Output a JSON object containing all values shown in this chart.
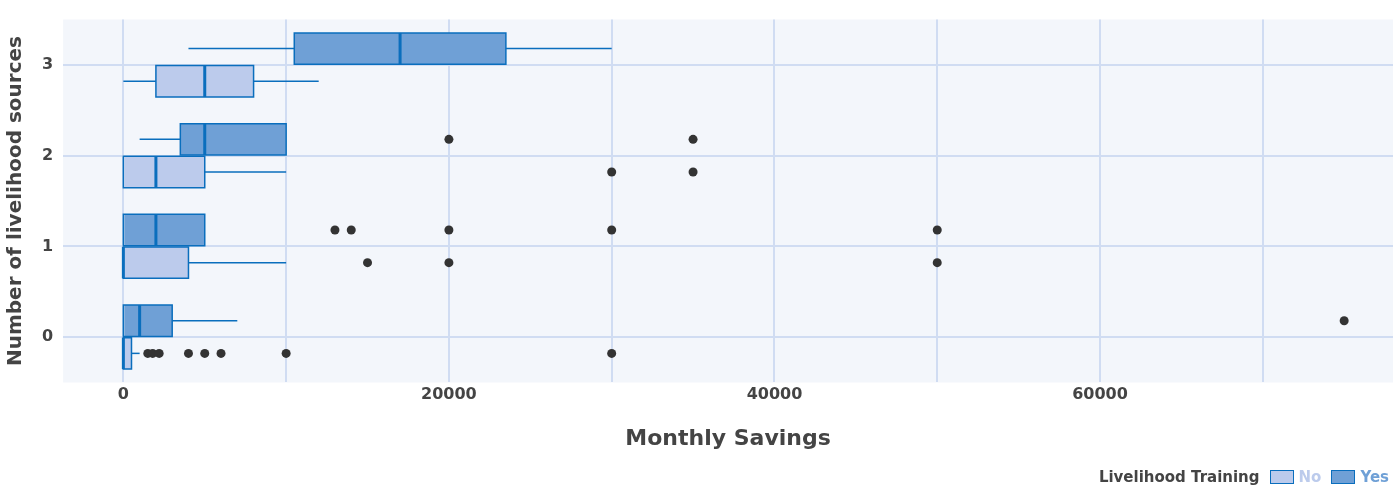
{
  "chart_data": {
    "type": "box",
    "orientation": "horizontal",
    "xlabel": "Monthly Savings",
    "ylabel": "Number of livelihood sources",
    "legend_title": "Livelihood Training",
    "legend": "bottom right",
    "grid": true,
    "categories": [
      "3",
      "2",
      "1",
      "0"
    ],
    "xlim": [
      -3700,
      78000
    ],
    "xticks": [
      0,
      {
        "value": 10000,
        "label": null
      },
      20000,
      {
        "value": 30000,
        "label": null
      },
      40000,
      {
        "value": 50000,
        "label": null
      },
      60000,
      {
        "value": 70000,
        "label": null
      }
    ],
    "series": [
      {
        "name": "No",
        "color": "#bccbec",
        "boxes": [
          {
            "low": 0,
            "q1": 2000,
            "median": 5000,
            "q3": 8000,
            "high": 12000
          },
          {
            "low": 0,
            "q1": 0,
            "median": 2000,
            "q3": 5000,
            "high": 10000,
            "outliers": [
              30000,
              35000
            ]
          },
          {
            "low": 0,
            "q1": 0,
            "median": 0,
            "q3": 4000,
            "high": 10000,
            "outliers": [
              15000,
              20000,
              50000
            ]
          },
          {
            "low": 0,
            "q1": 0,
            "median": 0,
            "q3": 500,
            "high": 1000,
            "outliers": [
              1500,
              1800,
              2200,
              4000,
              5000,
              6000,
              10000,
              30000
            ]
          }
        ]
      },
      {
        "name": "Yes",
        "color": "#6fa0d6",
        "boxes": [
          {
            "low": 4000,
            "q1": 10500,
            "median": 17000,
            "q3": 23500,
            "high": 30000
          },
          {
            "low": 1000,
            "q1": 3500,
            "median": 5000,
            "q3": 10000,
            "high": 10000,
            "outliers": [
              20000,
              35000
            ]
          },
          {
            "low": 0,
            "q1": 0,
            "median": 2000,
            "q3": 5000,
            "high": 5000,
            "outliers": [
              13000,
              14000,
              20000,
              30000,
              50000
            ]
          },
          {
            "low": 0,
            "q1": 0,
            "median": 1000,
            "q3": 3000,
            "high": 7000,
            "outliers": [
              75000
            ]
          }
        ]
      }
    ]
  }
}
